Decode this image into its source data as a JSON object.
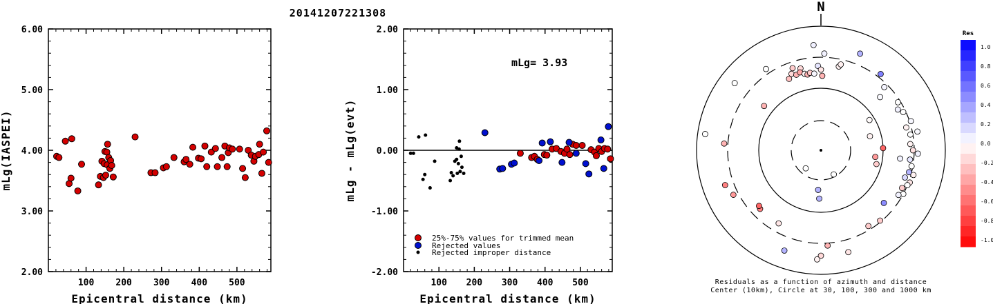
{
  "title": "20141207221308",
  "chart_data": [
    {
      "type": "scatter",
      "xlabel": "Epicentral distance (km)",
      "ylabel": "mLg(IASPEI)",
      "xlim": [
        0,
        590
      ],
      "ylim": [
        2.0,
        6.0
      ],
      "xticks": [
        "100",
        "200",
        "300",
        "400",
        "500"
      ],
      "yticks": [
        "2.00",
        "3.00",
        "4.00",
        "5.00",
        "6.00"
      ],
      "series": [
        {
          "color": "#d40000",
          "points": [
            [
              22,
              3.9
            ],
            [
              28,
              3.88
            ],
            [
              45,
              4.15
            ],
            [
              55,
              3.45
            ],
            [
              60,
              3.54
            ],
            [
              62,
              4.19
            ],
            [
              78,
              3.33
            ],
            [
              88,
              3.77
            ],
            [
              133,
              3.43
            ],
            [
              138,
              3.57
            ],
            [
              142,
              3.82
            ],
            [
              146,
              3.55
            ],
            [
              148,
              3.78
            ],
            [
              150,
              3.98
            ],
            [
              152,
              3.59
            ],
            [
              155,
              3.97
            ],
            [
              156,
              3.76
            ],
            [
              157,
              4.1
            ],
            [
              160,
              3.88
            ],
            [
              163,
              3.7
            ],
            [
              165,
              3.83
            ],
            [
              168,
              3.75
            ],
            [
              172,
              3.56
            ],
            [
              230,
              4.22
            ],
            [
              272,
              3.63
            ],
            [
              283,
              3.63
            ],
            [
              305,
              3.71
            ],
            [
              313,
              3.73
            ],
            [
              333,
              3.88
            ],
            [
              360,
              3.81
            ],
            [
              365,
              3.85
            ],
            [
              375,
              3.77
            ],
            [
              383,
              4.05
            ],
            [
              398,
              3.87
            ],
            [
              405,
              3.86
            ],
            [
              415,
              4.07
            ],
            [
              420,
              3.73
            ],
            [
              432,
              3.97
            ],
            [
              443,
              4.03
            ],
            [
              448,
              3.73
            ],
            [
              460,
              3.88
            ],
            [
              468,
              4.07
            ],
            [
              474,
              3.73
            ],
            [
              477,
              3.96
            ],
            [
              480,
              4.04
            ],
            [
              488,
              4.02
            ],
            [
              507,
              4.02
            ],
            [
              515,
              3.7
            ],
            [
              522,
              3.55
            ],
            [
              530,
              4.0
            ],
            [
              538,
              3.92
            ],
            [
              545,
              3.82
            ],
            [
              549,
              3.9
            ],
            [
              558,
              3.93
            ],
            [
              560,
              4.1
            ],
            [
              566,
              3.62
            ],
            [
              570,
              3.97
            ],
            [
              579,
              4.32
            ],
            [
              584,
              3.8
            ]
          ]
        }
      ]
    },
    {
      "type": "scatter",
      "xlabel": "Epicentral distance (km)",
      "ylabel": "mLg - mLg(evt)",
      "annotation": "mLg= 3.93",
      "xlim": [
        0,
        590
      ],
      "ylim": [
        -2.0,
        2.0
      ],
      "xticks": [
        "100",
        "200",
        "300",
        "400",
        "500"
      ],
      "yticks": [
        "-2.00",
        "-1.00",
        "0.00",
        "1.00",
        "2.00"
      ],
      "reference_line": 0.0,
      "series": [
        {
          "name": "25%-75% values for trimmed mean",
          "color": "#d40000",
          "points": [
            [
              330,
              -0.05
            ],
            [
              362,
              -0.12
            ],
            [
              370,
              -0.1
            ],
            [
              378,
              -0.15
            ],
            [
              398,
              -0.07
            ],
            [
              405,
              -0.08
            ],
            [
              420,
              0.02
            ],
            [
              432,
              0.03
            ],
            [
              445,
              -0.02
            ],
            [
              455,
              -0.05
            ],
            [
              462,
              0.02
            ],
            [
              470,
              -0.07
            ],
            [
              478,
              0.1
            ],
            [
              488,
              0.08
            ],
            [
              505,
              0.08
            ],
            [
              530,
              0.01
            ],
            [
              540,
              -0.03
            ],
            [
              545,
              -0.09
            ],
            [
              552,
              0.03
            ],
            [
              560,
              -0.02
            ],
            [
              568,
              0.03
            ],
            [
              577,
              0.02
            ],
            [
              585,
              -0.14
            ]
          ]
        },
        {
          "name": "Rejected values",
          "color": "#0010d0",
          "points": [
            [
              230,
              0.29
            ],
            [
              272,
              -0.31
            ],
            [
              280,
              -0.3
            ],
            [
              305,
              -0.23
            ],
            [
              313,
              -0.21
            ],
            [
              383,
              -0.17
            ],
            [
              392,
              0.12
            ],
            [
              415,
              0.14
            ],
            [
              448,
              -0.2
            ],
            [
              468,
              0.13
            ],
            [
              488,
              -0.05
            ],
            [
              515,
              -0.22
            ],
            [
              524,
              -0.39
            ],
            [
              558,
              0.17
            ],
            [
              566,
              -0.3
            ],
            [
              579,
              0.39
            ]
          ]
        },
        {
          "name": "Rejected improper distance",
          "color": "#000000",
          "points": [
            [
              20,
              -0.05
            ],
            [
              28,
              -0.05
            ],
            [
              43,
              0.22
            ],
            [
              55,
              -0.48
            ],
            [
              60,
              -0.4
            ],
            [
              62,
              0.25
            ],
            [
              75,
              -0.62
            ],
            [
              88,
              -0.18
            ],
            [
              132,
              -0.5
            ],
            [
              135,
              -0.37
            ],
            [
              140,
              -0.42
            ],
            [
              145,
              -0.18
            ],
            [
              150,
              0.04
            ],
            [
              150,
              -0.15
            ],
            [
              152,
              -0.38
            ],
            [
              155,
              -0.22
            ],
            [
              157,
              0.02
            ],
            [
              158,
              0.15
            ],
            [
              160,
              -0.35
            ],
            [
              163,
              -0.1
            ],
            [
              165,
              -0.28
            ],
            [
              170,
              -0.38
            ]
          ]
        }
      ]
    },
    {
      "type": "polar-scatter",
      "north_label": "N",
      "caption_line1": "Residuals as a function of azimuth and distance",
      "caption_line2": "Center (10km), Circle at 30, 100, 300 and 1000 km",
      "colorbar_title": "Res",
      "colorbar_ticks": [
        "1.0",
        "0.8",
        "0.6",
        "0.4",
        "0.2",
        "0.0",
        "-0.2",
        "-0.4",
        "-0.6",
        "-0.8",
        "-1.0"
      ],
      "points": [
        {
          "az": 2,
          "r": 0.78,
          "res": 0.05
        },
        {
          "az": 356,
          "r": 0.85,
          "res": 0.06
        },
        {
          "az": 12,
          "r": 0.69,
          "res": -0.05
        },
        {
          "az": 13,
          "r": 0.71,
          "res": -0.06
        },
        {
          "az": 22,
          "r": 0.84,
          "res": 0.3
        },
        {
          "az": 38,
          "r": 0.78,
          "res": 0.5
        },
        {
          "az": 45,
          "r": 0.72,
          "res": 0.04
        },
        {
          "az": 48,
          "r": 0.64,
          "res": 0.02
        },
        {
          "az": 58,
          "r": 0.73,
          "res": 0.0
        },
        {
          "az": 62,
          "r": 0.7,
          "res": 0.05
        },
        {
          "az": 65,
          "r": 0.73,
          "res": 0.0
        },
        {
          "az": 72,
          "r": 0.76,
          "res": 0.03
        },
        {
          "az": 75,
          "r": 0.71,
          "res": -0.05
        },
        {
          "az": 80,
          "r": 0.73,
          "res": 0.0
        },
        {
          "az": 79,
          "r": 0.79,
          "res": 0.02
        },
        {
          "az": 86,
          "r": 0.72,
          "res": -0.05
        },
        {
          "az": 90,
          "r": 0.74,
          "res": -0.12
        },
        {
          "az": 92,
          "r": 0.78,
          "res": 0.05
        },
        {
          "az": 96,
          "r": 0.72,
          "res": 0.1
        },
        {
          "az": 100,
          "r": 0.74,
          "res": 0.0
        },
        {
          "az": 104,
          "r": 0.73,
          "res": 0.3
        },
        {
          "az": 105,
          "r": 0.77,
          "res": -0.05
        },
        {
          "az": 108,
          "r": 0.71,
          "res": 0.15
        },
        {
          "az": 110,
          "r": 0.76,
          "res": -0.1
        },
        {
          "az": 112,
          "r": 0.75,
          "res": 0.0
        },
        {
          "az": 115,
          "r": 0.72,
          "res": -0.2
        },
        {
          "az": 118,
          "r": 0.75,
          "res": 0.0
        },
        {
          "az": 120,
          "r": 0.72,
          "res": 0.05
        },
        {
          "az": 58,
          "r": 0.46,
          "res": -0.02
        },
        {
          "az": 74,
          "r": 0.41,
          "res": -0.05
        },
        {
          "az": 88,
          "r": 0.5,
          "res": -0.6
        },
        {
          "az": 97,
          "r": 0.44,
          "res": -0.4
        },
        {
          "az": 104,
          "r": 0.46,
          "res": -0.2
        },
        {
          "az": 96,
          "r": 0.64,
          "res": 0.05
        },
        {
          "az": 130,
          "r": 0.66,
          "res": 0.45
        },
        {
          "az": 140,
          "r": 0.74,
          "res": -0.2
        },
        {
          "az": 148,
          "r": 0.72,
          "res": -0.2
        },
        {
          "az": 165,
          "r": 0.85,
          "res": -0.1
        },
        {
          "az": 176,
          "r": 0.77,
          "res": -0.3
        },
        {
          "az": 180,
          "r": 0.85,
          "res": -0.15
        },
        {
          "az": 182,
          "r": 0.88,
          "res": -0.05
        },
        {
          "az": 184,
          "r": 0.32,
          "res": 0.3
        },
        {
          "az": 182,
          "r": 0.39,
          "res": 0.3
        },
        {
          "az": 200,
          "r": 0.86,
          "res": 0.3
        },
        {
          "az": 210,
          "r": 0.68,
          "res": -0.1
        },
        {
          "az": 226,
          "r": 0.68,
          "res": -0.5
        },
        {
          "az": 228,
          "r": 0.67,
          "res": -0.6
        },
        {
          "az": 243,
          "r": 0.79,
          "res": -0.4
        },
        {
          "az": 250,
          "r": 0.82,
          "res": -0.5
        },
        {
          "az": 274,
          "r": 0.78,
          "res": -0.3
        },
        {
          "az": 278,
          "r": 0.94,
          "res": 0.0
        },
        {
          "az": 220,
          "r": 0.19,
          "res": 0.0
        },
        {
          "az": 152,
          "r": 0.22,
          "res": 0.0
        },
        {
          "az": 308,
          "r": 0.88,
          "res": 0.0
        },
        {
          "az": 326,
          "r": 0.79,
          "res": 0.0
        },
        {
          "az": 308,
          "r": 0.58,
          "res": -0.3
        },
        {
          "az": 336,
          "r": 0.63,
          "res": -0.25
        },
        {
          "az": 339,
          "r": 0.66,
          "res": -0.15
        },
        {
          "az": 341,
          "r": 0.7,
          "res": -0.2
        },
        {
          "az": 346,
          "r": 0.68,
          "res": -0.15
        },
        {
          "az": 342,
          "r": 0.64,
          "res": -0.3
        },
        {
          "az": 345,
          "r": 0.65,
          "res": -0.35
        },
        {
          "az": 348,
          "r": 0.63,
          "res": -0.05
        },
        {
          "az": 350,
          "r": 0.62,
          "res": -0.3
        },
        {
          "az": 352,
          "r": 0.63,
          "res": -0.2
        },
        {
          "az": 355,
          "r": 0.62,
          "res": 0.03
        },
        {
          "az": 358,
          "r": 0.68,
          "res": 0.1
        },
        {
          "az": 0,
          "r": 0.65,
          "res": -0.1
        },
        {
          "az": 1,
          "r": 0.6,
          "res": -0.3
        }
      ]
    }
  ]
}
